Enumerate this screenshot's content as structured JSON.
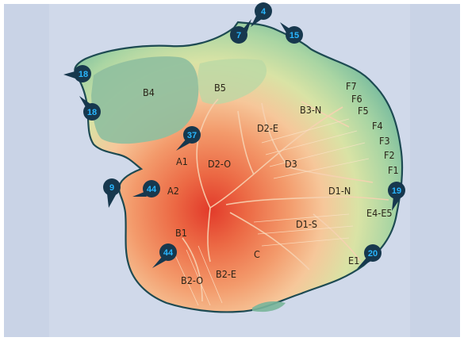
{
  "map": {
    "background_color": "#c9d3e6",
    "island_outline_color": "#1d4a52",
    "heat_colors": [
      "#e8422e",
      "#f07a4f",
      "#f6b98a",
      "#d7e2a6",
      "#8cc6a3"
    ],
    "pin_color": "#17384e",
    "pin_text_color": "#29b6ff",
    "zones": [
      {
        "id": "B4",
        "label": "B4"
      },
      {
        "id": "B5",
        "label": "B5"
      },
      {
        "id": "D2-E",
        "label": "D2-E"
      },
      {
        "id": "B3-N",
        "label": "B3-N"
      },
      {
        "id": "F7",
        "label": "F7"
      },
      {
        "id": "F6",
        "label": "F6"
      },
      {
        "id": "F5",
        "label": "F5"
      },
      {
        "id": "F4",
        "label": "F4"
      },
      {
        "id": "F3",
        "label": "F3"
      },
      {
        "id": "F2",
        "label": "F2"
      },
      {
        "id": "F1",
        "label": "F1"
      },
      {
        "id": "A1",
        "label": "A1"
      },
      {
        "id": "D2-O",
        "label": "D2-O"
      },
      {
        "id": "D3",
        "label": "D3"
      },
      {
        "id": "A2",
        "label": "A2"
      },
      {
        "id": "D1-N",
        "label": "D1-N"
      },
      {
        "id": "E4-E5",
        "label": "E4-E5"
      },
      {
        "id": "D1-S",
        "label": "D1-S"
      },
      {
        "id": "B1",
        "label": "B1"
      },
      {
        "id": "C",
        "label": "C"
      },
      {
        "id": "B2-E",
        "label": "B2-E"
      },
      {
        "id": "B2-O",
        "label": "B2-O"
      },
      {
        "id": "E1",
        "label": "E1"
      }
    ],
    "markers": [
      {
        "id": "m4",
        "label": "4"
      },
      {
        "id": "m7",
        "label": "7"
      },
      {
        "id": "m15",
        "label": "15"
      },
      {
        "id": "m18a",
        "label": "18"
      },
      {
        "id": "m18b",
        "label": "18"
      },
      {
        "id": "m37",
        "label": "37"
      },
      {
        "id": "m9",
        "label": "9"
      },
      {
        "id": "m44a",
        "label": "44"
      },
      {
        "id": "m19",
        "label": "19"
      },
      {
        "id": "m44b",
        "label": "44"
      },
      {
        "id": "m20",
        "label": "20"
      }
    ]
  }
}
